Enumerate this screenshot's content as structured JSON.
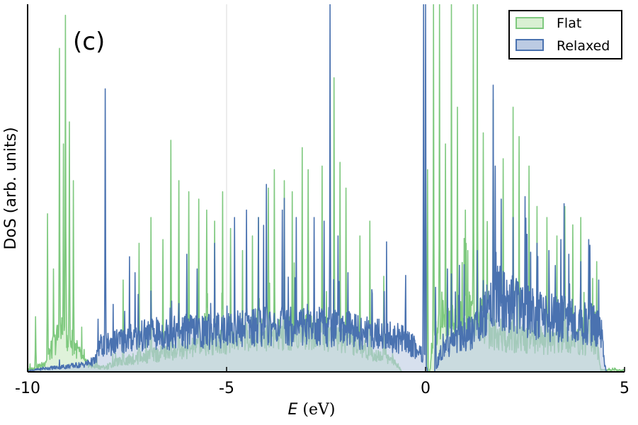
{
  "chart_data": {
    "type": "area",
    "panel_label": "(c)",
    "xlabel_italic": "E",
    "xlabel_unit": " (eV)",
    "ylabel": "DoS (arb. units)",
    "xlim": [
      -10,
      5
    ],
    "ylim": [
      0,
      100
    ],
    "xticks": [
      -10,
      -5,
      0,
      5
    ],
    "xtick_labels": [
      "-10",
      "-5",
      "0",
      "5"
    ],
    "yticks_shown": false,
    "grid": "vertical lines at x = -5 and x = 0",
    "legend_placement": "top-right",
    "series": [
      {
        "name": "Flat",
        "color": "#7fc97f",
        "fill": "#d9f0d3",
        "band_gap": [
          -0.6,
          0.1
        ],
        "envelope": [
          [
            -10,
            0.5
          ],
          [
            -9.6,
            2
          ],
          [
            -9.3,
            8
          ],
          [
            -9.2,
            11
          ],
          [
            -9.0,
            10
          ],
          [
            -8.8,
            7
          ],
          [
            -8.6,
            3
          ],
          [
            -8.4,
            1.5
          ],
          [
            -8.0,
            1.2
          ],
          [
            -7.8,
            2.5
          ],
          [
            -7.5,
            3.2
          ],
          [
            -7.0,
            4.2
          ],
          [
            -6.5,
            5.2
          ],
          [
            -6.0,
            6.2
          ],
          [
            -5.5,
            7.2
          ],
          [
            -5.0,
            8.5
          ],
          [
            -4.5,
            9.5
          ],
          [
            -4.0,
            10.2
          ],
          [
            -3.5,
            10.5
          ],
          [
            -3.0,
            11
          ],
          [
            -2.5,
            10.2
          ],
          [
            -2.0,
            8.2
          ],
          [
            -1.5,
            6
          ],
          [
            -1.0,
            4
          ],
          [
            -0.7,
            2
          ],
          [
            -0.6,
            0
          ],
          [
            0.1,
            0
          ],
          [
            0.2,
            8
          ],
          [
            0.4,
            16
          ],
          [
            0.8,
            13
          ],
          [
            1.2,
            16
          ],
          [
            1.6,
            11.5
          ],
          [
            2.0,
            9.5
          ],
          [
            2.5,
            9
          ],
          [
            3.0,
            8.5
          ],
          [
            3.5,
            8.5
          ],
          [
            4.0,
            8
          ],
          [
            4.3,
            7.5
          ],
          [
            4.4,
            0.5
          ]
        ],
        "peaks": [
          [
            -9.8,
            15
          ],
          [
            -9.5,
            43
          ],
          [
            -9.35,
            28
          ],
          [
            -9.2,
            88
          ],
          [
            -9.1,
            62
          ],
          [
            -9.05,
            97
          ],
          [
            -8.95,
            68
          ],
          [
            -8.85,
            52
          ],
          [
            -7.6,
            25
          ],
          [
            -7.2,
            35
          ],
          [
            -6.9,
            42
          ],
          [
            -6.6,
            36
          ],
          [
            -6.4,
            63
          ],
          [
            -6.2,
            52
          ],
          [
            -5.95,
            49
          ],
          [
            -5.7,
            47
          ],
          [
            -5.5,
            44
          ],
          [
            -5.3,
            41
          ],
          [
            -5.1,
            49
          ],
          [
            -4.9,
            39
          ],
          [
            -4.6,
            33
          ],
          [
            -4.35,
            37
          ],
          [
            -4.2,
            42
          ],
          [
            -3.95,
            50
          ],
          [
            -3.8,
            55
          ],
          [
            -3.55,
            52
          ],
          [
            -3.35,
            49
          ],
          [
            -3.1,
            61
          ],
          [
            -2.95,
            55
          ],
          [
            -2.6,
            56
          ],
          [
            -2.3,
            80
          ],
          [
            -2.15,
            57
          ],
          [
            -2.0,
            50
          ],
          [
            -1.65,
            37
          ],
          [
            -1.4,
            41
          ],
          [
            -1.05,
            26
          ],
          [
            0.05,
            55
          ],
          [
            0.2,
            100
          ],
          [
            0.35,
            100
          ],
          [
            0.5,
            62
          ],
          [
            0.65,
            100
          ],
          [
            0.8,
            72
          ],
          [
            1.0,
            44
          ],
          [
            1.2,
            100
          ],
          [
            1.3,
            100
          ],
          [
            1.45,
            65
          ],
          [
            1.7,
            74
          ],
          [
            1.95,
            58
          ],
          [
            2.2,
            72
          ],
          [
            2.35,
            64
          ],
          [
            2.6,
            56
          ],
          [
            2.8,
            45
          ],
          [
            3.05,
            42
          ],
          [
            3.3,
            37
          ],
          [
            3.5,
            45
          ],
          [
            3.7,
            40
          ],
          [
            3.9,
            42
          ],
          [
            4.1,
            32
          ],
          [
            4.3,
            30
          ]
        ]
      },
      {
        "name": "Relaxed",
        "color": "#4a72b0",
        "fill": "#bccbe3",
        "band_gap": [
          0.05,
          0.25
        ],
        "envelope": [
          [
            -10,
            0.3
          ],
          [
            -9.5,
            1
          ],
          [
            -9.0,
            1.5
          ],
          [
            -8.6,
            2
          ],
          [
            -8.3,
            3
          ],
          [
            -8.2,
            7
          ],
          [
            -8.0,
            7.5
          ],
          [
            -7.5,
            9
          ],
          [
            -7.0,
            10
          ],
          [
            -6.5,
            10.5
          ],
          [
            -6.0,
            11
          ],
          [
            -5.5,
            11
          ],
          [
            -5.0,
            11.5
          ],
          [
            -4.5,
            12
          ],
          [
            -4.0,
            12.2
          ],
          [
            -3.5,
            12.5
          ],
          [
            -3.0,
            13
          ],
          [
            -2.5,
            12.5
          ],
          [
            -2.0,
            11.5
          ],
          [
            -1.5,
            10.5
          ],
          [
            -1.0,
            9.8
          ],
          [
            -0.6,
            9
          ],
          [
            -0.3,
            7
          ],
          [
            -0.1,
            5
          ],
          [
            0.0,
            3
          ],
          [
            0.05,
            0
          ],
          [
            0.25,
            0
          ],
          [
            0.4,
            6
          ],
          [
            0.8,
            9
          ],
          [
            1.2,
            11
          ],
          [
            1.5,
            17
          ],
          [
            1.8,
            21
          ],
          [
            2.2,
            18
          ],
          [
            2.6,
            16
          ],
          [
            3.0,
            15
          ],
          [
            3.4,
            14.5
          ],
          [
            3.8,
            14
          ],
          [
            4.2,
            13
          ],
          [
            4.45,
            10
          ],
          [
            4.5,
            2
          ],
          [
            4.55,
            0
          ]
        ],
        "peaks": [
          [
            -8.05,
            77
          ],
          [
            -7.3,
            27
          ],
          [
            -6.9,
            22
          ],
          [
            -6.0,
            32
          ],
          [
            -5.3,
            35
          ],
          [
            -4.8,
            42
          ],
          [
            -4.5,
            44
          ],
          [
            -4.2,
            42
          ],
          [
            -4.0,
            51
          ],
          [
            -3.6,
            44
          ],
          [
            -3.25,
            42
          ],
          [
            -2.8,
            42
          ],
          [
            -2.55,
            41
          ],
          [
            -2.4,
            100
          ],
          [
            -2.2,
            37
          ],
          [
            -1.95,
            27
          ],
          [
            -0.05,
            100
          ],
          [
            0.0,
            100
          ],
          [
            0.25,
            23
          ],
          [
            0.55,
            28
          ],
          [
            0.85,
            29
          ],
          [
            1.3,
            33
          ],
          [
            1.7,
            78
          ],
          [
            1.75,
            56
          ],
          [
            1.9,
            47
          ],
          [
            2.2,
            42
          ],
          [
            2.5,
            38
          ],
          [
            2.8,
            35
          ],
          [
            3.1,
            33
          ],
          [
            3.4,
            36
          ],
          [
            3.6,
            32
          ],
          [
            3.9,
            30
          ],
          [
            4.1,
            36
          ],
          [
            4.35,
            25
          ]
        ]
      }
    ]
  }
}
